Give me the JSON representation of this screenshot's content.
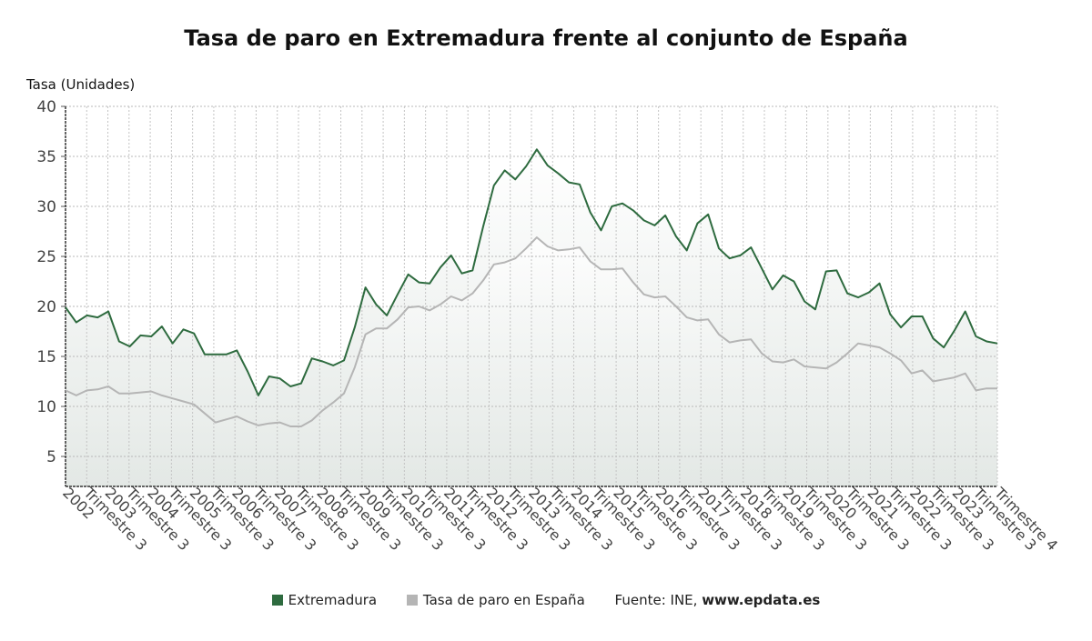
{
  "chart_data": {
    "type": "area",
    "title": "Tasa de paro en Extremadura frente al conjunto de España",
    "ylabel": "Tasa (Unidades)",
    "ylim": [
      2,
      40
    ],
    "yticks": [
      5,
      10,
      15,
      20,
      25,
      30,
      35,
      40
    ],
    "grid": true,
    "legend_position": "bottom",
    "xtick_labels": [
      "2002",
      "Trimestre 3",
      "2003",
      "Trimestre 3",
      "2004",
      "Trimestre 3",
      "2005",
      "Trimestre 3",
      "2006",
      "Trimestre 3",
      "2007",
      "Trimestre 3",
      "2008",
      "Trimestre 3",
      "2009",
      "Trimestre 3",
      "2010",
      "Trimestre 3",
      "2011",
      "Trimestre 3",
      "2012",
      "Trimestre 3",
      "2013",
      "Trimestre 3",
      "2014",
      "Trimestre 3",
      "2015",
      "Trimestre 3",
      "2016",
      "Trimestre 3",
      "2017",
      "Trimestre 3",
      "2018",
      "Trimestre 3",
      "2019",
      "Trimestre 3",
      "2020",
      "Trimestre 3",
      "2021",
      "Trimestre 3",
      "2022",
      "Trimestre 3",
      "2023",
      "Trimestre 3",
      "Trimestre 4"
    ],
    "series": [
      {
        "name": "Extremadura",
        "color": "#2e6b3f",
        "values": [
          19.9,
          18.4,
          19.1,
          18.9,
          19.5,
          16.5,
          16.0,
          17.1,
          17.0,
          18.0,
          16.3,
          17.7,
          17.3,
          15.2,
          15.2,
          15.2,
          15.6,
          13.5,
          11.1,
          13.0,
          12.8,
          12.0,
          12.3,
          14.8,
          14.5,
          14.1,
          14.6,
          17.9,
          21.9,
          20.2,
          19.1,
          21.2,
          23.2,
          22.4,
          22.3,
          23.9,
          25.1,
          23.3,
          23.6,
          28.0,
          32.1,
          33.6,
          32.7,
          34.0,
          35.7,
          34.1,
          33.3,
          32.4,
          32.2,
          29.4,
          27.6,
          30.0,
          30.3,
          29.6,
          28.6,
          28.1,
          29.1,
          27.0,
          25.6,
          28.3,
          29.2,
          25.8,
          24.8,
          25.1,
          25.9,
          23.8,
          21.7,
          23.1,
          22.5,
          20.5,
          19.7,
          23.5,
          23.6,
          21.3,
          20.9,
          21.4,
          22.3,
          19.2,
          17.9,
          19.0,
          19.0,
          16.8,
          15.9,
          17.6,
          19.5,
          17.0,
          16.5,
          16.3
        ]
      },
      {
        "name": "Tasa de paro en España",
        "color": "#b5b5b5",
        "values": [
          11.6,
          11.1,
          11.6,
          11.7,
          12.0,
          11.3,
          11.3,
          11.4,
          11.5,
          11.1,
          10.8,
          10.5,
          10.2,
          9.3,
          8.4,
          8.7,
          9.0,
          8.5,
          8.1,
          8.3,
          8.4,
          8.0,
          8.0,
          8.6,
          9.6,
          10.4,
          11.3,
          13.9,
          17.2,
          17.8,
          17.8,
          18.7,
          19.9,
          20.0,
          19.6,
          20.2,
          21.0,
          20.6,
          21.3,
          22.6,
          24.2,
          24.4,
          24.8,
          25.8,
          26.9,
          26.0,
          25.6,
          25.7,
          25.9,
          24.5,
          23.7,
          23.7,
          23.8,
          22.4,
          21.2,
          20.9,
          21.0,
          20.0,
          18.9,
          18.6,
          18.7,
          17.2,
          16.4,
          16.6,
          16.7,
          15.3,
          14.5,
          14.4,
          14.7,
          14.0,
          13.9,
          13.8,
          14.4,
          15.3,
          16.3,
          16.1,
          15.9,
          15.3,
          14.6,
          13.3,
          13.6,
          12.5,
          12.7,
          12.9,
          13.3,
          11.6,
          11.8,
          11.8
        ]
      }
    ]
  },
  "legend": {
    "items": [
      {
        "label": "Extremadura",
        "color": "#2e6b3f"
      },
      {
        "label": "Tasa de paro en España",
        "color": "#b5b5b5"
      }
    ],
    "source_prefix": "Fuente: INE, ",
    "source_url": "www.epdata.es"
  }
}
